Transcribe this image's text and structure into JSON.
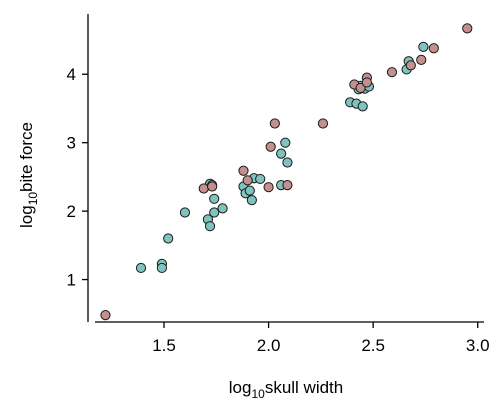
{
  "chart_data": {
    "type": "scatter",
    "title": "",
    "xlabel": {
      "prefix": "log",
      "subscript": "10",
      "suffix": "skull width"
    },
    "ylabel": {
      "prefix": "log",
      "subscript": "10",
      "suffix": "bite force"
    },
    "xlim": [
      1.17,
      3.03
    ],
    "ylim": [
      0.38,
      4.88
    ],
    "xticks": [
      1.5,
      2.0,
      2.5,
      3.0
    ],
    "xtick_labels": [
      "1.5",
      "2.0",
      "2.5",
      "3.0"
    ],
    "yticks": [
      1,
      2,
      3,
      4
    ],
    "ytick_labels": [
      "1",
      "2",
      "3",
      "4"
    ],
    "grid": false,
    "legend": "none",
    "series": [
      {
        "color": "#7fc3be",
        "points": [
          [
            1.39,
            1.17
          ],
          [
            1.49,
            1.23
          ],
          [
            1.49,
            1.17
          ],
          [
            1.52,
            1.6
          ],
          [
            1.6,
            1.98
          ],
          [
            1.71,
            1.88
          ],
          [
            1.72,
            2.4
          ],
          [
            1.73,
            2.38
          ],
          [
            1.72,
            1.78
          ],
          [
            1.74,
            2.18
          ],
          [
            1.74,
            1.98
          ],
          [
            1.78,
            2.04
          ],
          [
            1.88,
            2.36
          ],
          [
            1.89,
            2.26
          ],
          [
            1.91,
            2.3
          ],
          [
            1.92,
            2.16
          ],
          [
            1.93,
            2.48
          ],
          [
            1.96,
            2.47
          ],
          [
            2.06,
            2.84
          ],
          [
            2.06,
            2.38
          ],
          [
            2.08,
            3.0
          ],
          [
            2.09,
            2.71
          ],
          [
            2.39,
            3.59
          ],
          [
            2.42,
            3.57
          ],
          [
            2.43,
            3.78
          ],
          [
            2.44,
            3.83
          ],
          [
            2.45,
            3.53
          ],
          [
            2.46,
            3.79
          ],
          [
            2.48,
            3.82
          ],
          [
            2.66,
            4.07
          ],
          [
            2.67,
            4.19
          ],
          [
            2.74,
            4.4
          ]
        ]
      },
      {
        "color": "#c4908e",
        "points": [
          [
            1.22,
            0.48
          ],
          [
            1.69,
            2.33
          ],
          [
            1.73,
            2.36
          ],
          [
            1.88,
            2.59
          ],
          [
            1.9,
            2.45
          ],
          [
            2.0,
            2.35
          ],
          [
            2.01,
            2.94
          ],
          [
            2.03,
            3.28
          ],
          [
            2.09,
            2.38
          ],
          [
            2.26,
            3.28
          ],
          [
            2.41,
            3.85
          ],
          [
            2.44,
            3.8
          ],
          [
            2.47,
            3.95
          ],
          [
            2.47,
            3.88
          ],
          [
            2.59,
            4.03
          ],
          [
            2.68,
            4.13
          ],
          [
            2.73,
            4.21
          ],
          [
            2.79,
            4.38
          ],
          [
            2.95,
            4.67
          ]
        ]
      }
    ]
  }
}
